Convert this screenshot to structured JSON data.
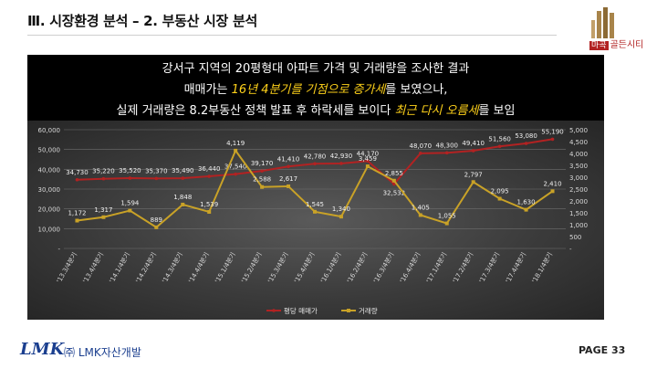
{
  "header": {
    "title": "Ⅲ. 시장환경 분석 – 2. 부동산 시장 분석"
  },
  "brand": {
    "badge_tag": "마곡",
    "badge_name": "골든시티",
    "accent": "#b22222"
  },
  "banner": {
    "line1": "강서구 지역의 20평형대 아파트 가격 및 거래량을 조사한 결과",
    "line2_pre": "매매가는 ",
    "line2_hl": "16년 4분기를 기점으로 증가세",
    "line2_post": "를 보였으나,",
    "line3_pre": "실제 거래량은 8.2부동산 정책 발표 후 하락세를 보이다 ",
    "line3_hl": "최근 다시 오름세",
    "line3_post": "를 보임",
    "highlight_color": "#ffd21a"
  },
  "chart_data": {
    "type": "line",
    "categories": [
      "'13.3/4분기",
      "'13.4/4분기",
      "'14.1/4분기",
      "'14.2/4분기",
      "'14.3/4분기",
      "'14.4/4분기",
      "'15.1/4분기",
      "'15.2/4분기",
      "'15.3/4분기",
      "'15.4/4분기",
      "'16.1/4분기",
      "'16.2/4분기",
      "'16.3/4분기",
      "'16.4/4분기",
      "'17.1/4분기",
      "'17.2/4분기",
      "'17.3/4분기",
      "'17.4/4분기",
      "'18.1/4분기"
    ],
    "series": [
      {
        "name": "평당 매매가",
        "axis": "left",
        "color": "#b22222",
        "values": [
          34730,
          35220,
          35520,
          35370,
          35490,
          36440,
          37540,
          39170,
          41410,
          42780,
          42930,
          44170,
          32532,
          48070,
          48300,
          49410,
          51560,
          53080,
          55190
        ],
        "labels": [
          "34,730",
          "35,220",
          "35,520",
          "35,370",
          "35,490",
          "36,440",
          "37,540",
          "39,170",
          "41,410",
          "42,780",
          "42,930",
          "44,170",
          "32,532",
          "48,070",
          "48,300",
          "49,410",
          "51,560",
          "53,080",
          "55,190"
        ]
      },
      {
        "name": "거래량",
        "axis": "right",
        "color": "#c9a227",
        "values": [
          1172,
          1317,
          1594,
          889,
          1848,
          1539,
          4119,
          2588,
          2617,
          1545,
          1340,
          3459,
          2855,
          1405,
          1055,
          2797,
          2095,
          1630,
          2410
        ],
        "labels": [
          "1,172",
          "1,317",
          "1,594",
          "889",
          "1,848",
          "1,539",
          "4,119",
          "2,588",
          "2,617",
          "1,545",
          "1,340",
          "3,459",
          "2,855",
          "1,405",
          "1,055",
          "2,797",
          "2,095",
          "1,630",
          "2,410"
        ]
      }
    ],
    "left_axis": {
      "min": 0,
      "max": 60000,
      "ticks": [
        "-",
        "10,000",
        "20,000",
        "30,000",
        "40,000",
        "50,000",
        "60,000"
      ]
    },
    "right_axis": {
      "min": 0,
      "max": 5000,
      "ticks": [
        "-",
        "500",
        "1,000",
        "1,500",
        "2,000",
        "2,500",
        "3,000",
        "3,500",
        "4,000",
        "4,500",
        "5,000"
      ]
    },
    "grid": true,
    "legend_position": "bottom"
  },
  "footer": {
    "logo_text": "LMK",
    "company": "㈜ LMK자산개발",
    "page": "PAGE 33"
  }
}
